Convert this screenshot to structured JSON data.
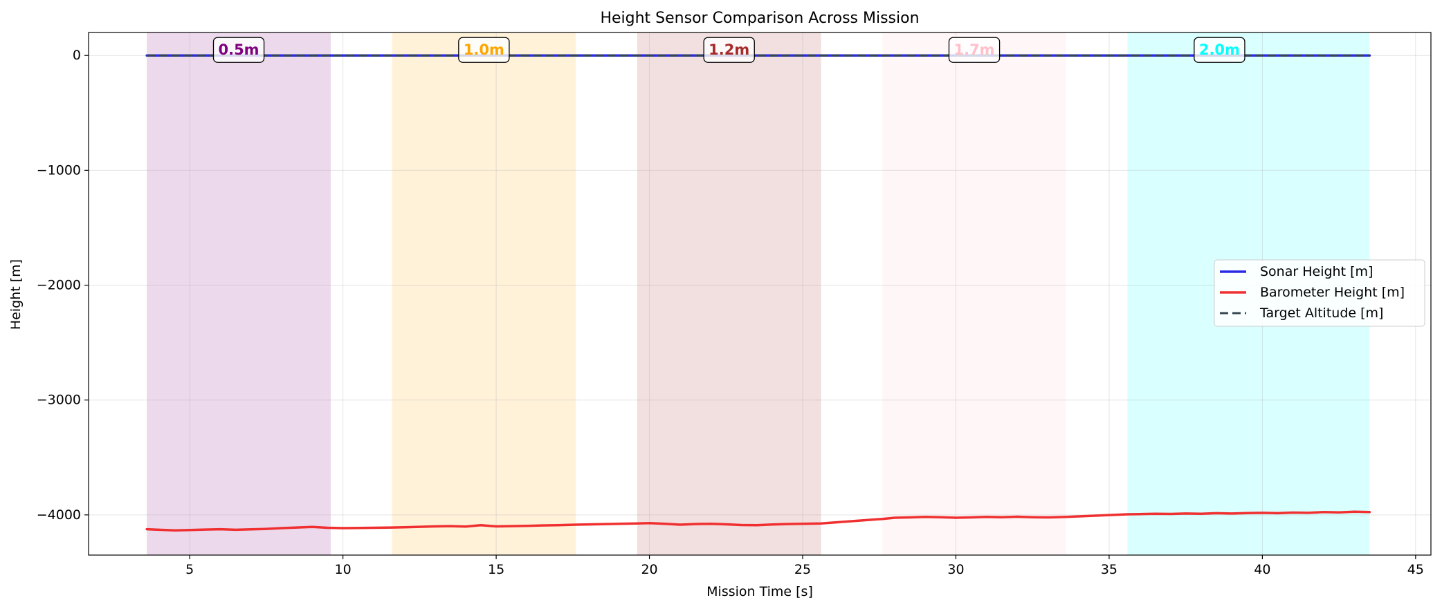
{
  "chart_data": {
    "type": "line",
    "title": "Height Sensor Comparison Across Mission",
    "xlabel": "Mission Time [s]",
    "ylabel": "Height [m]",
    "xlim": [
      1.7,
      45.5
    ],
    "ylim": [
      -4350,
      200
    ],
    "x_ticks": [
      5,
      10,
      15,
      20,
      25,
      30,
      35,
      40,
      45
    ],
    "x_tick_labels": [
      "5",
      "10",
      "15",
      "20",
      "25",
      "30",
      "35",
      "40",
      "45"
    ],
    "y_ticks": [
      0,
      -1000,
      -2000,
      -3000,
      -4000
    ],
    "y_tick_labels": [
      "0",
      "−1000",
      "−2000",
      "−3000",
      "−4000"
    ],
    "grid": true,
    "legend_position": "center-right",
    "bands": [
      {
        "label": "0.5m",
        "start": 3.6,
        "end": 9.6,
        "color": "#800080",
        "alpha": 0.15
      },
      {
        "label": "1.0m",
        "start": 11.6,
        "end": 17.6,
        "color": "#ffa500",
        "alpha": 0.15
      },
      {
        "label": "1.2m",
        "start": 19.6,
        "end": 25.6,
        "color": "#a52a2a",
        "alpha": 0.15
      },
      {
        "label": "1.7m",
        "start": 27.6,
        "end": 33.6,
        "color": "#ffc0cb",
        "alpha": 0.15
      },
      {
        "label": "2.0m",
        "start": 35.6,
        "end": 43.5,
        "color": "#00ffff",
        "alpha": 0.15
      }
    ],
    "series": [
      {
        "name": "Sonar Height [m]",
        "color": "#2a2ae6",
        "style": "solid",
        "x": [
          3.6,
          43.5
        ],
        "y": [
          0,
          0
        ]
      },
      {
        "name": "Barometer Height [m]",
        "color": "#f03030",
        "style": "solid",
        "x": [
          3.6,
          4.0,
          4.5,
          5.0,
          5.5,
          6.0,
          6.5,
          7.0,
          7.5,
          8.0,
          8.5,
          9.0,
          9.5,
          10.0,
          11.0,
          11.6,
          12.0,
          12.5,
          13.0,
          13.5,
          14.0,
          14.5,
          15.0,
          15.5,
          16.0,
          16.5,
          17.0,
          17.6,
          19.6,
          20.0,
          20.5,
          21.0,
          21.5,
          22.0,
          22.5,
          23.0,
          23.5,
          24.0,
          24.5,
          25.0,
          25.6,
          27.6,
          28.0,
          28.5,
          29.0,
          29.5,
          30.0,
          30.5,
          31.0,
          31.5,
          32.0,
          32.5,
          33.0,
          33.6,
          35.6,
          36.0,
          36.5,
          37.0,
          37.5,
          38.0,
          38.5,
          39.0,
          39.5,
          40.0,
          40.5,
          41.0,
          41.5,
          42.0,
          42.5,
          43.0,
          43.5
        ],
        "y": [
          -4125,
          -4130,
          -4135,
          -4132,
          -4128,
          -4125,
          -4130,
          -4126,
          -4122,
          -4115,
          -4110,
          -4105,
          -4112,
          -4115,
          -4112,
          -4110,
          -4108,
          -4104,
          -4100,
          -4098,
          -4102,
          -4090,
          -4100,
          -4098,
          -4096,
          -4092,
          -4090,
          -4085,
          -4075,
          -4072,
          -4078,
          -4085,
          -4080,
          -4078,
          -4082,
          -4088,
          -4090,
          -4084,
          -4080,
          -4078,
          -4075,
          -4035,
          -4025,
          -4022,
          -4018,
          -4020,
          -4025,
          -4022,
          -4018,
          -4020,
          -4016,
          -4020,
          -4022,
          -4018,
          -3995,
          -3993,
          -3990,
          -3992,
          -3988,
          -3990,
          -3985,
          -3988,
          -3984,
          -3982,
          -3985,
          -3980,
          -3982,
          -3975,
          -3978,
          -3972,
          -3975
        ]
      },
      {
        "name": "Target Altitude [m]",
        "color": "#37474f",
        "style": "dashed",
        "x": [
          3.6,
          43.5
        ],
        "y": [
          0,
          0
        ]
      }
    ]
  }
}
